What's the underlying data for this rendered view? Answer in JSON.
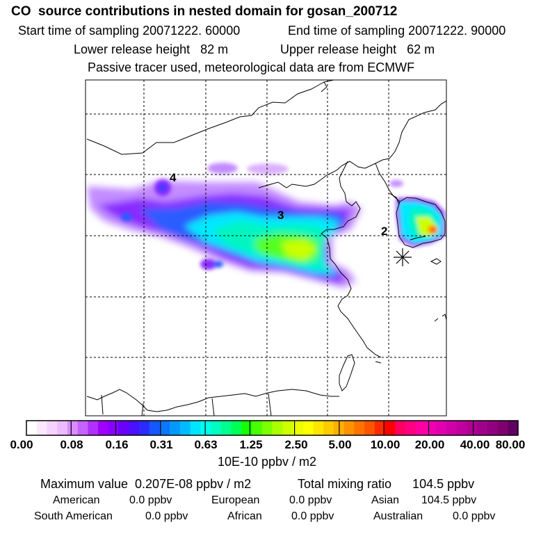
{
  "title": "CO  source contributions in nested domain for gosan_200712",
  "header": {
    "start_time": "Start time of sampling 20071222. 60000",
    "end_time": "End time of sampling 20071222. 90000",
    "lower_height": "Lower release height   82 m",
    "upper_height": "Upper release height   62 m",
    "tracer_note": "Passive tracer used, meteorological data are from ECMWF"
  },
  "map": {
    "region_labels": [
      {
        "id": "4",
        "text": "4"
      },
      {
        "id": "3",
        "text": "3"
      },
      {
        "id": "2",
        "text": "2"
      }
    ],
    "receptor_marker": "asterisk-icon"
  },
  "colorbar": {
    "unit_label": "10E-10 ppbv / m2",
    "tick_labels": [
      "0.00",
      "0.08",
      "0.16",
      "0.31",
      "0.63",
      "1.25",
      "2.50",
      "5.00",
      "10.00",
      "20.00",
      "40.00",
      "80.00"
    ],
    "colors": [
      "#ffffff",
      "#fbe8ff",
      "#f6d2ff",
      "#eebbff",
      "#d98cff",
      "#c463ff",
      "#b030ff",
      "#9f00ff",
      "#8800ff",
      "#6a00ff",
      "#4b10ff",
      "#2b2bff",
      "#1456ff",
      "#0b78ff",
      "#0599ff",
      "#00bbff",
      "#00e5ff",
      "#00ffea",
      "#00ffc0",
      "#00ff90",
      "#00ff55",
      "#14ff00",
      "#48ff00",
      "#7cff00",
      "#aaff00",
      "#ccff00",
      "#ecff00",
      "#ffff00",
      "#ffe600",
      "#ffcc00",
      "#ffb000",
      "#ff9200",
      "#ff7400",
      "#ff5500",
      "#ff2a00",
      "#ff0000",
      "#ff0060",
      "#ff0080",
      "#ff00a0",
      "#f000b0",
      "#e000b0",
      "#d000a8",
      "#c0009e",
      "#b00094",
      "#a0008a",
      "#900080",
      "#800070",
      "#600060"
    ]
  },
  "summary": {
    "max_label": "Maximum value  0.207E-08 ppbv / m2",
    "total_label": "Total mixing ratio      104.5 ppbv",
    "contributions": [
      {
        "name": "American",
        "value": "0.0 ppbv"
      },
      {
        "name": "European",
        "value": "0.0 ppbv"
      },
      {
        "name": "Asian",
        "value": "104.5 ppbv"
      },
      {
        "name": "South American",
        "value": "0.0 ppbv"
      },
      {
        "name": "African",
        "value": "0.0 ppbv"
      },
      {
        "name": "Australian",
        "value": "0.0 ppbv"
      }
    ]
  }
}
